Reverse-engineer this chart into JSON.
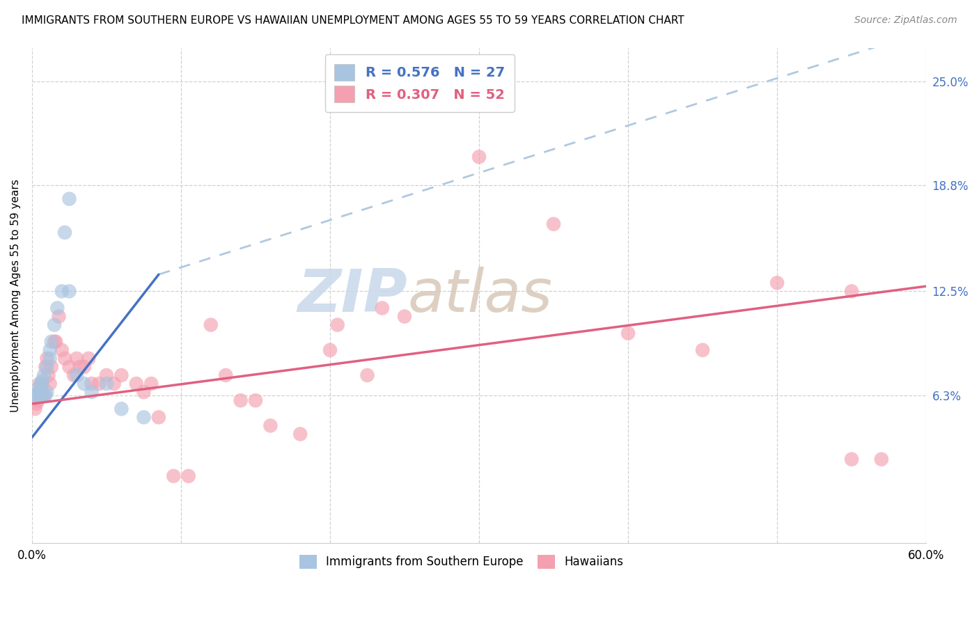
{
  "title": "IMMIGRANTS FROM SOUTHERN EUROPE VS HAWAIIAN UNEMPLOYMENT AMONG AGES 55 TO 59 YEARS CORRELATION CHART",
  "source": "Source: ZipAtlas.com",
  "ylabel": "Unemployment Among Ages 55 to 59 years",
  "ytick_labels": [
    "6.3%",
    "12.5%",
    "18.8%",
    "25.0%"
  ],
  "legend_label1": "Immigrants from Southern Europe",
  "legend_label2": "Hawaiians",
  "R1": "0.576",
  "N1": "27",
  "R2": "0.307",
  "N2": "52",
  "color_blue": "#a8c4e0",
  "color_pink": "#f4a0b0",
  "line_blue": "#4472c4",
  "line_pink": "#e06080",
  "line_dashed_color": "#b0c8e0",
  "watermark_zip_color": "#c8d8e8",
  "watermark_atlas_color": "#d0c0b0",
  "blue_points": [
    [
      0.2,
      6.3
    ],
    [
      0.3,
      6.3
    ],
    [
      0.4,
      6.5
    ],
    [
      0.5,
      6.8
    ],
    [
      0.6,
      7.0
    ],
    [
      0.6,
      6.3
    ],
    [
      0.7,
      7.2
    ],
    [
      0.8,
      7.5
    ],
    [
      0.8,
      6.3
    ],
    [
      0.9,
      6.3
    ],
    [
      1.0,
      8.0
    ],
    [
      1.0,
      6.5
    ],
    [
      1.2,
      9.0
    ],
    [
      1.2,
      8.5
    ],
    [
      1.3,
      9.5
    ],
    [
      1.5,
      10.5
    ],
    [
      1.7,
      11.5
    ],
    [
      2.0,
      12.5
    ],
    [
      2.5,
      12.5
    ],
    [
      2.2,
      16.0
    ],
    [
      2.5,
      18.0
    ],
    [
      3.0,
      7.5
    ],
    [
      3.5,
      7.0
    ],
    [
      4.0,
      6.5
    ],
    [
      5.0,
      7.0
    ],
    [
      6.0,
      5.5
    ],
    [
      7.5,
      5.0
    ]
  ],
  "pink_points": [
    [
      0.2,
      5.5
    ],
    [
      0.3,
      5.8
    ],
    [
      0.4,
      6.0
    ],
    [
      0.5,
      7.0
    ],
    [
      0.6,
      6.5
    ],
    [
      0.7,
      7.0
    ],
    [
      0.8,
      6.3
    ],
    [
      0.9,
      8.0
    ],
    [
      1.0,
      8.5
    ],
    [
      1.1,
      7.5
    ],
    [
      1.2,
      7.0
    ],
    [
      1.3,
      8.0
    ],
    [
      1.5,
      9.5
    ],
    [
      1.6,
      9.5
    ],
    [
      1.8,
      11.0
    ],
    [
      2.0,
      9.0
    ],
    [
      2.2,
      8.5
    ],
    [
      2.5,
      8.0
    ],
    [
      2.8,
      7.5
    ],
    [
      3.0,
      8.5
    ],
    [
      3.2,
      8.0
    ],
    [
      3.5,
      8.0
    ],
    [
      3.8,
      8.5
    ],
    [
      4.0,
      7.0
    ],
    [
      4.5,
      7.0
    ],
    [
      5.0,
      7.5
    ],
    [
      5.5,
      7.0
    ],
    [
      6.0,
      7.5
    ],
    [
      7.0,
      7.0
    ],
    [
      7.5,
      6.5
    ],
    [
      8.0,
      7.0
    ],
    [
      8.5,
      5.0
    ],
    [
      9.5,
      1.5
    ],
    [
      10.5,
      1.5
    ],
    [
      12.0,
      10.5
    ],
    [
      13.0,
      7.5
    ],
    [
      14.0,
      6.0
    ],
    [
      15.0,
      6.0
    ],
    [
      16.0,
      4.5
    ],
    [
      18.0,
      4.0
    ],
    [
      20.0,
      9.0
    ],
    [
      20.5,
      10.5
    ],
    [
      22.5,
      7.5
    ],
    [
      23.5,
      11.5
    ],
    [
      25.0,
      11.0
    ],
    [
      30.0,
      20.5
    ],
    [
      35.0,
      16.5
    ],
    [
      40.0,
      10.0
    ],
    [
      45.0,
      9.0
    ],
    [
      50.0,
      13.0
    ],
    [
      55.0,
      12.5
    ],
    [
      55.0,
      2.5
    ],
    [
      57.0,
      2.5
    ]
  ],
  "xlim": [
    0,
    60
  ],
  "ylim": [
    -2.5,
    27
  ],
  "xgrid_ticks": [
    0,
    10,
    20,
    30,
    40,
    50,
    60
  ],
  "ygrid_values": [
    6.3,
    12.5,
    18.8,
    25.0
  ],
  "blue_line_x": [
    0,
    8.5
  ],
  "blue_line_y": [
    3.8,
    13.5
  ],
  "dashed_line_x": [
    8.5,
    60
  ],
  "dashed_line_y": [
    13.5,
    28.0
  ],
  "pink_line_x": [
    0,
    60
  ],
  "pink_line_y": [
    5.8,
    12.8
  ]
}
